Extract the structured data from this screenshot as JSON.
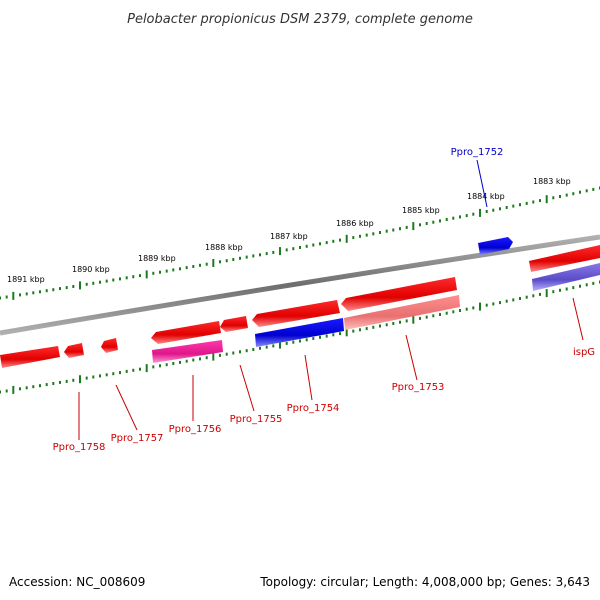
{
  "title": "Pelobacter propionicus DSM 2379, complete genome",
  "footer": {
    "accession": "Accession: NC_008609",
    "topology": "Topology: circular; Length: 4,008,000 bp; Genes: 3,643"
  },
  "colors": {
    "backbone": "#8c8c8c",
    "tick": "#1f7a1f",
    "label_red": "#cc0000",
    "label_blue": "#0000cc"
  },
  "kbp_labels": [
    "1891 kbp",
    "1890 kbp",
    "1889 kbp",
    "1888 kbp",
    "1887 kbp",
    "1886 kbp",
    "1885 kbp",
    "1884 kbp",
    "1883 kbp"
  ],
  "genes": [
    {
      "name": "Ppro_1758",
      "color": "red"
    },
    {
      "name": "Ppro_1757",
      "color": "red"
    },
    {
      "name": "Ppro_1756",
      "color": "red"
    },
    {
      "name": "Ppro_1755",
      "color": "red"
    },
    {
      "name": "Ppro_1754",
      "color": "red"
    },
    {
      "name": "Ppro_1753",
      "color": "red"
    },
    {
      "name": "ispG",
      "color": "red"
    },
    {
      "name": "Ppro_1752",
      "color": "blue"
    }
  ]
}
